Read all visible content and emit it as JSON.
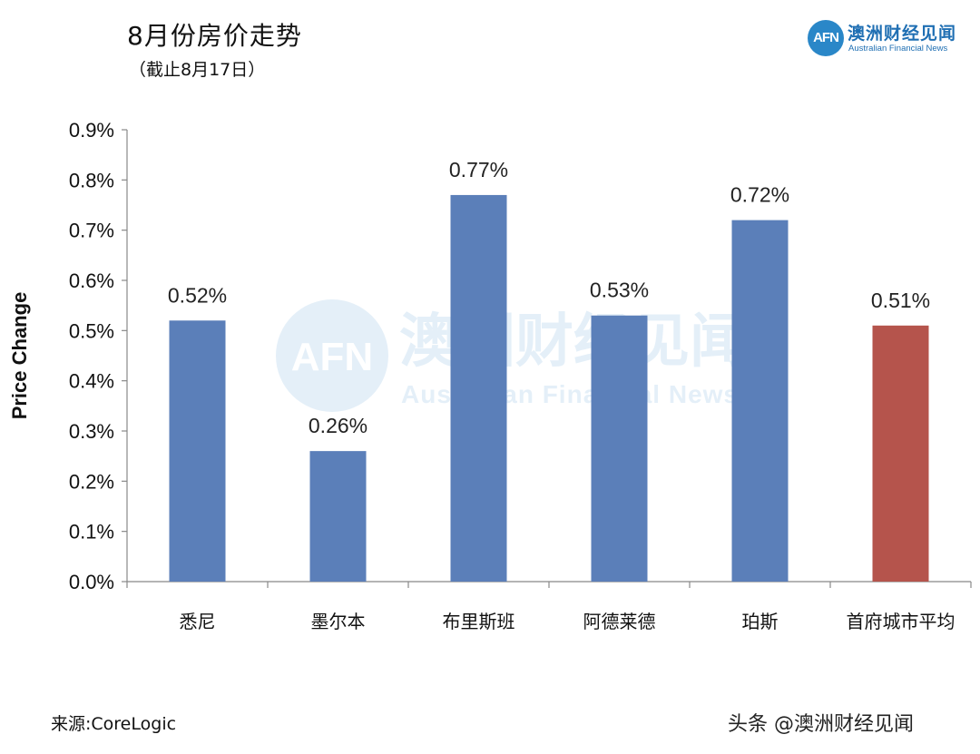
{
  "header": {
    "title": "8月份房价走势",
    "subtitle": "（截止8月17日）"
  },
  "logo": {
    "mark": "AFN",
    "name_cn": "澳洲财经见闻",
    "name_en": "Australian Financial News"
  },
  "watermark": {
    "mark": "AFN",
    "name_cn": "澳洲财经见闻",
    "name_en": "Australian Financial News"
  },
  "footer": {
    "source": "来源:CoreLogic",
    "credit": "头条 @澳洲财经见闻"
  },
  "colors": {
    "bar": "#5b7fb9",
    "highlight_bar": "#b5544c",
    "logo": "#1f6fb3"
  },
  "chart_data": {
    "type": "bar",
    "categories": [
      "悉尼",
      "墨尔本",
      "布里斯班",
      "阿德莱德",
      "珀斯",
      "首府城市平均"
    ],
    "values": [
      0.52,
      0.26,
      0.77,
      0.53,
      0.72,
      0.51
    ],
    "data_labels": [
      "0.52%",
      "0.26%",
      "0.77%",
      "0.53%",
      "0.72%",
      "0.51%"
    ],
    "highlight_index": 5,
    "ylabel": "Price Change",
    "xlabel": "",
    "ylim": [
      0,
      0.9
    ],
    "yticks": [
      0.0,
      0.1,
      0.2,
      0.3,
      0.4,
      0.5,
      0.6,
      0.7,
      0.8,
      0.9
    ],
    "ytick_labels": [
      "0.0%",
      "0.1%",
      "0.2%",
      "0.3%",
      "0.4%",
      "0.5%",
      "0.6%",
      "0.7%",
      "0.8%",
      "0.9%"
    ],
    "grid": false,
    "legend": "none"
  }
}
